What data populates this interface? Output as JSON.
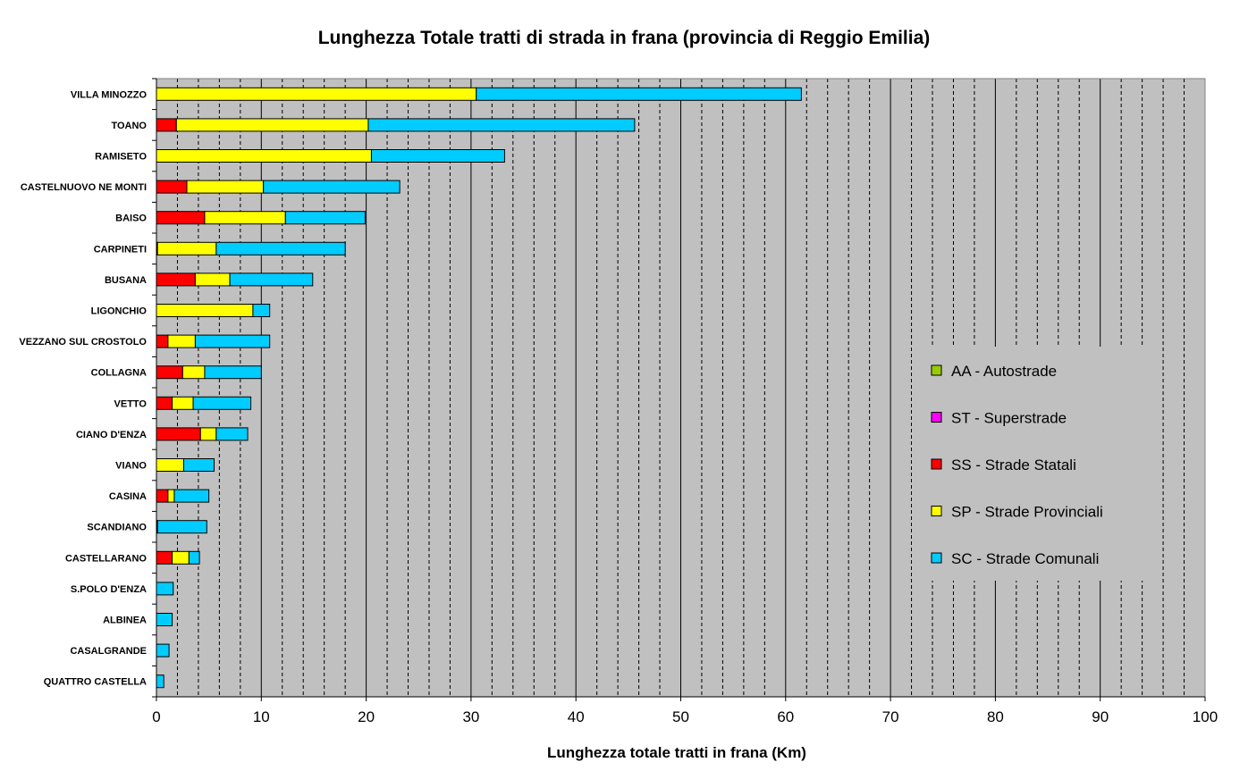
{
  "chart_data": {
    "type": "bar",
    "orientation": "horizontal",
    "stacked": true,
    "title": "Lunghezza Totale tratti di strada in frana (provincia di Reggio Emilia)",
    "xlabel": "Lunghezza totale tratti in frana (Km)",
    "ylabel": "",
    "xlim": [
      0,
      100
    ],
    "major_ticks": [
      0,
      10,
      20,
      30,
      40,
      50,
      60,
      70,
      80,
      90,
      100
    ],
    "minor_step": 2,
    "grid": true,
    "plot_background": "#c0c0c0",
    "legend_position": "right",
    "categories": [
      "VILLA MINOZZO",
      "TOANO",
      "RAMISETO",
      "CASTELNUOVO NE MONTI",
      "BAISO",
      "CARPINETI",
      "BUSANA",
      "LIGONCHIO",
      "VEZZANO SUL CROSTOLO",
      "COLLAGNA",
      "VETTO",
      "CIANO D'ENZA",
      "VIANO",
      "CASINA",
      "SCANDIANO",
      "CASTELLARANO",
      "S.POLO D'ENZA",
      "ALBINEA",
      "CASALGRANDE",
      "QUATTRO CASTELLA"
    ],
    "series": [
      {
        "name": "AA - Autostrade",
        "color": "#99cc00",
        "values": [
          0,
          0,
          0,
          0,
          0,
          0,
          0,
          0,
          0,
          0,
          0,
          0,
          0,
          0,
          0,
          0,
          0,
          0,
          0,
          0
        ]
      },
      {
        "name": "ST - Superstrade",
        "color": "#ff00ff",
        "values": [
          0,
          0,
          0,
          0,
          0,
          0,
          0,
          0,
          0,
          0,
          0,
          0,
          0,
          0,
          0,
          0,
          0,
          0,
          0,
          0
        ]
      },
      {
        "name": "SS - Strade Statali",
        "color": "#ff0000",
        "values": [
          0,
          1.9,
          0,
          2.9,
          4.6,
          0.1,
          3.7,
          0,
          1.1,
          2.5,
          1.5,
          4.2,
          0,
          1.1,
          0.1,
          1.5,
          0,
          0,
          0,
          0
        ]
      },
      {
        "name": "SP - Strade Provinciali",
        "color": "#ffff00",
        "values": [
          30.5,
          18.3,
          20.5,
          7.3,
          7.7,
          5.6,
          3.3,
          9.2,
          2.6,
          2.1,
          2.0,
          1.5,
          2.6,
          0.6,
          0,
          1.6,
          0,
          0,
          0,
          0
        ]
      },
      {
        "name": "SC - Strade Comunali",
        "color": "#00ccff",
        "values": [
          31.0,
          25.4,
          12.7,
          13.0,
          7.6,
          12.3,
          7.9,
          1.6,
          7.1,
          5.4,
          5.5,
          3.0,
          2.9,
          3.3,
          4.7,
          1.0,
          1.6,
          1.5,
          1.2,
          0.7
        ]
      }
    ]
  }
}
